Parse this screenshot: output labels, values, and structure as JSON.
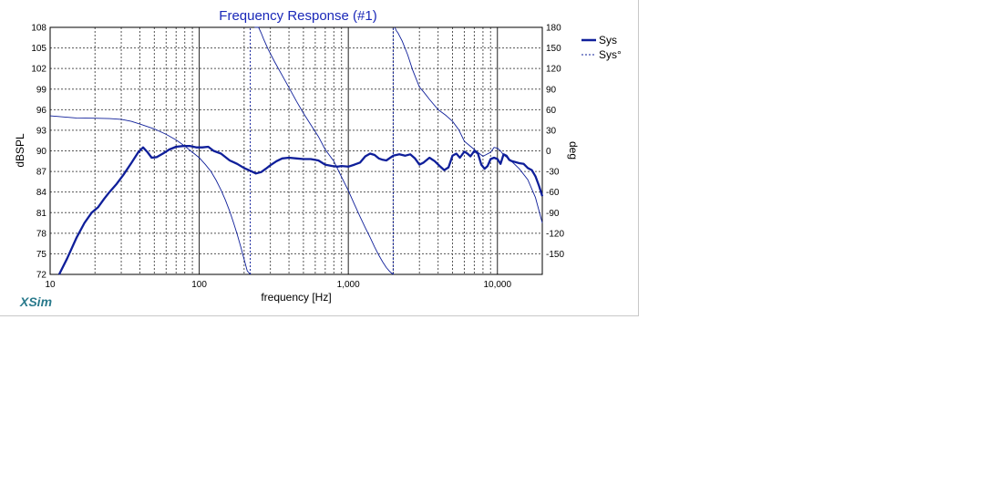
{
  "app": {
    "brand": "XSim"
  },
  "chart_data": {
    "type": "line",
    "title": "Frequency Response (#1)",
    "xlabel": "frequency [Hz]",
    "ylabel": "dBSPL",
    "y2label": "deg",
    "xscale": "log",
    "xlim": [
      10,
      20000
    ],
    "ylim": [
      72,
      108
    ],
    "y2lim": [
      -180,
      180
    ],
    "xticks": [
      10,
      100,
      1000,
      10000
    ],
    "xtick_labels": [
      "10",
      "100",
      "1,000",
      "10,000"
    ],
    "yticks": [
      72,
      75,
      78,
      81,
      84,
      87,
      90,
      93,
      96,
      99,
      102,
      105,
      108
    ],
    "y2ticks": [
      -150,
      -120,
      -90,
      -60,
      -30,
      0,
      30,
      60,
      90,
      120,
      150,
      180
    ],
    "grid": true,
    "legend_position": "top-right",
    "colors": {
      "line": "#0f1f9a",
      "title": "#1a28b8",
      "grid": "#555555",
      "brand": "#2a7a8c"
    },
    "series": [
      {
        "name": "Sys",
        "axis": "left",
        "style": "solid-thick",
        "x": [
          11.5,
          13,
          15,
          17,
          19,
          21,
          23,
          25,
          28,
          31,
          35,
          39,
          42,
          45,
          48,
          52,
          57,
          63,
          70,
          78,
          87,
          96,
          105,
          115,
          125,
          140,
          160,
          180,
          200,
          220,
          240,
          260,
          280,
          300,
          330,
          360,
          400,
          450,
          500,
          560,
          630,
          700,
          780,
          850,
          900,
          1000,
          1100,
          1200,
          1300,
          1400,
          1500,
          1600,
          1700,
          1800,
          2000,
          2200,
          2400,
          2600,
          2800,
          3000,
          3200,
          3500,
          3800,
          4100,
          4400,
          4700,
          5000,
          5300,
          5600,
          6000,
          6300,
          6600,
          7000,
          7400,
          7800,
          8200,
          8600,
          9000,
          9500,
          10000,
          10500,
          11000,
          11500,
          12000,
          12500,
          13000,
          14000,
          15000,
          16000,
          17000,
          18000,
          19000,
          20000
        ],
        "values": [
          72.0,
          74.3,
          77.3,
          79.5,
          81.0,
          81.8,
          83.0,
          84.0,
          85.2,
          86.5,
          88.2,
          89.8,
          90.5,
          89.8,
          89.0,
          89.1,
          89.6,
          90.2,
          90.6,
          90.7,
          90.7,
          90.5,
          90.5,
          90.6,
          90.0,
          89.6,
          88.6,
          88.1,
          87.5,
          87.1,
          86.7,
          86.9,
          87.4,
          87.9,
          88.5,
          88.9,
          89.0,
          88.9,
          88.8,
          88.8,
          88.6,
          88.0,
          87.8,
          87.7,
          87.8,
          87.7,
          88.0,
          88.3,
          89.2,
          89.6,
          89.4,
          88.9,
          88.7,
          88.6,
          89.3,
          89.5,
          89.3,
          89.5,
          88.9,
          88.0,
          88.3,
          89.0,
          88.5,
          87.8,
          87.2,
          87.6,
          89.3,
          89.6,
          89.0,
          89.9,
          89.6,
          89.2,
          90.0,
          89.6,
          88.0,
          87.4,
          87.8,
          88.8,
          89.0,
          88.8,
          88.1,
          89.5,
          89.3,
          88.7,
          88.5,
          88.4,
          88.2,
          88.1,
          87.5,
          87.2,
          86.3,
          84.9,
          83.4
        ]
      },
      {
        "name": "Sys°",
        "axis": "right",
        "style": "thin",
        "x": [
          10,
          15,
          20,
          25,
          30,
          35,
          40,
          50,
          60,
          70,
          80,
          90,
          100,
          110,
          120,
          130,
          140,
          150,
          160,
          170,
          180,
          190,
          200,
          210,
          220,
          235,
          250,
          260,
          270,
          290,
          320,
          360,
          400,
          450,
          500,
          560,
          630,
          700,
          800,
          900,
          1000,
          1100,
          1200,
          1300,
          1400,
          1500,
          1600,
          1700,
          1800,
          1900,
          2000,
          2050,
          2100,
          2150,
          2300,
          2500,
          2700,
          3000,
          3200,
          3500,
          4000,
          4500,
          5000,
          5500,
          6000,
          7000,
          8000,
          9000,
          9500,
          10000,
          10500,
          11000,
          12000,
          14000,
          16000,
          18000,
          20000
        ],
        "values": [
          51,
          48,
          47.5,
          47,
          46,
          43,
          39,
          32,
          24,
          16,
          7,
          -2,
          -10,
          -20,
          -30,
          -43,
          -57,
          -72,
          -88,
          -105,
          -122,
          -140,
          -158,
          -175,
          -180,
          180,
          180,
          172,
          163,
          148,
          130,
          110,
          92,
          72,
          55,
          38,
          21,
          2,
          -15,
          -38,
          -58,
          -78,
          -96,
          -112,
          -126,
          -140,
          -152,
          -162,
          -170,
          -176,
          -180,
          180,
          175,
          172,
          160,
          140,
          118,
          93,
          86,
          75,
          60,
          52,
          43,
          31,
          14,
          2,
          -8,
          -2,
          5,
          4,
          0,
          -6,
          -12,
          -26,
          -42,
          -68,
          -105
        ]
      }
    ]
  }
}
